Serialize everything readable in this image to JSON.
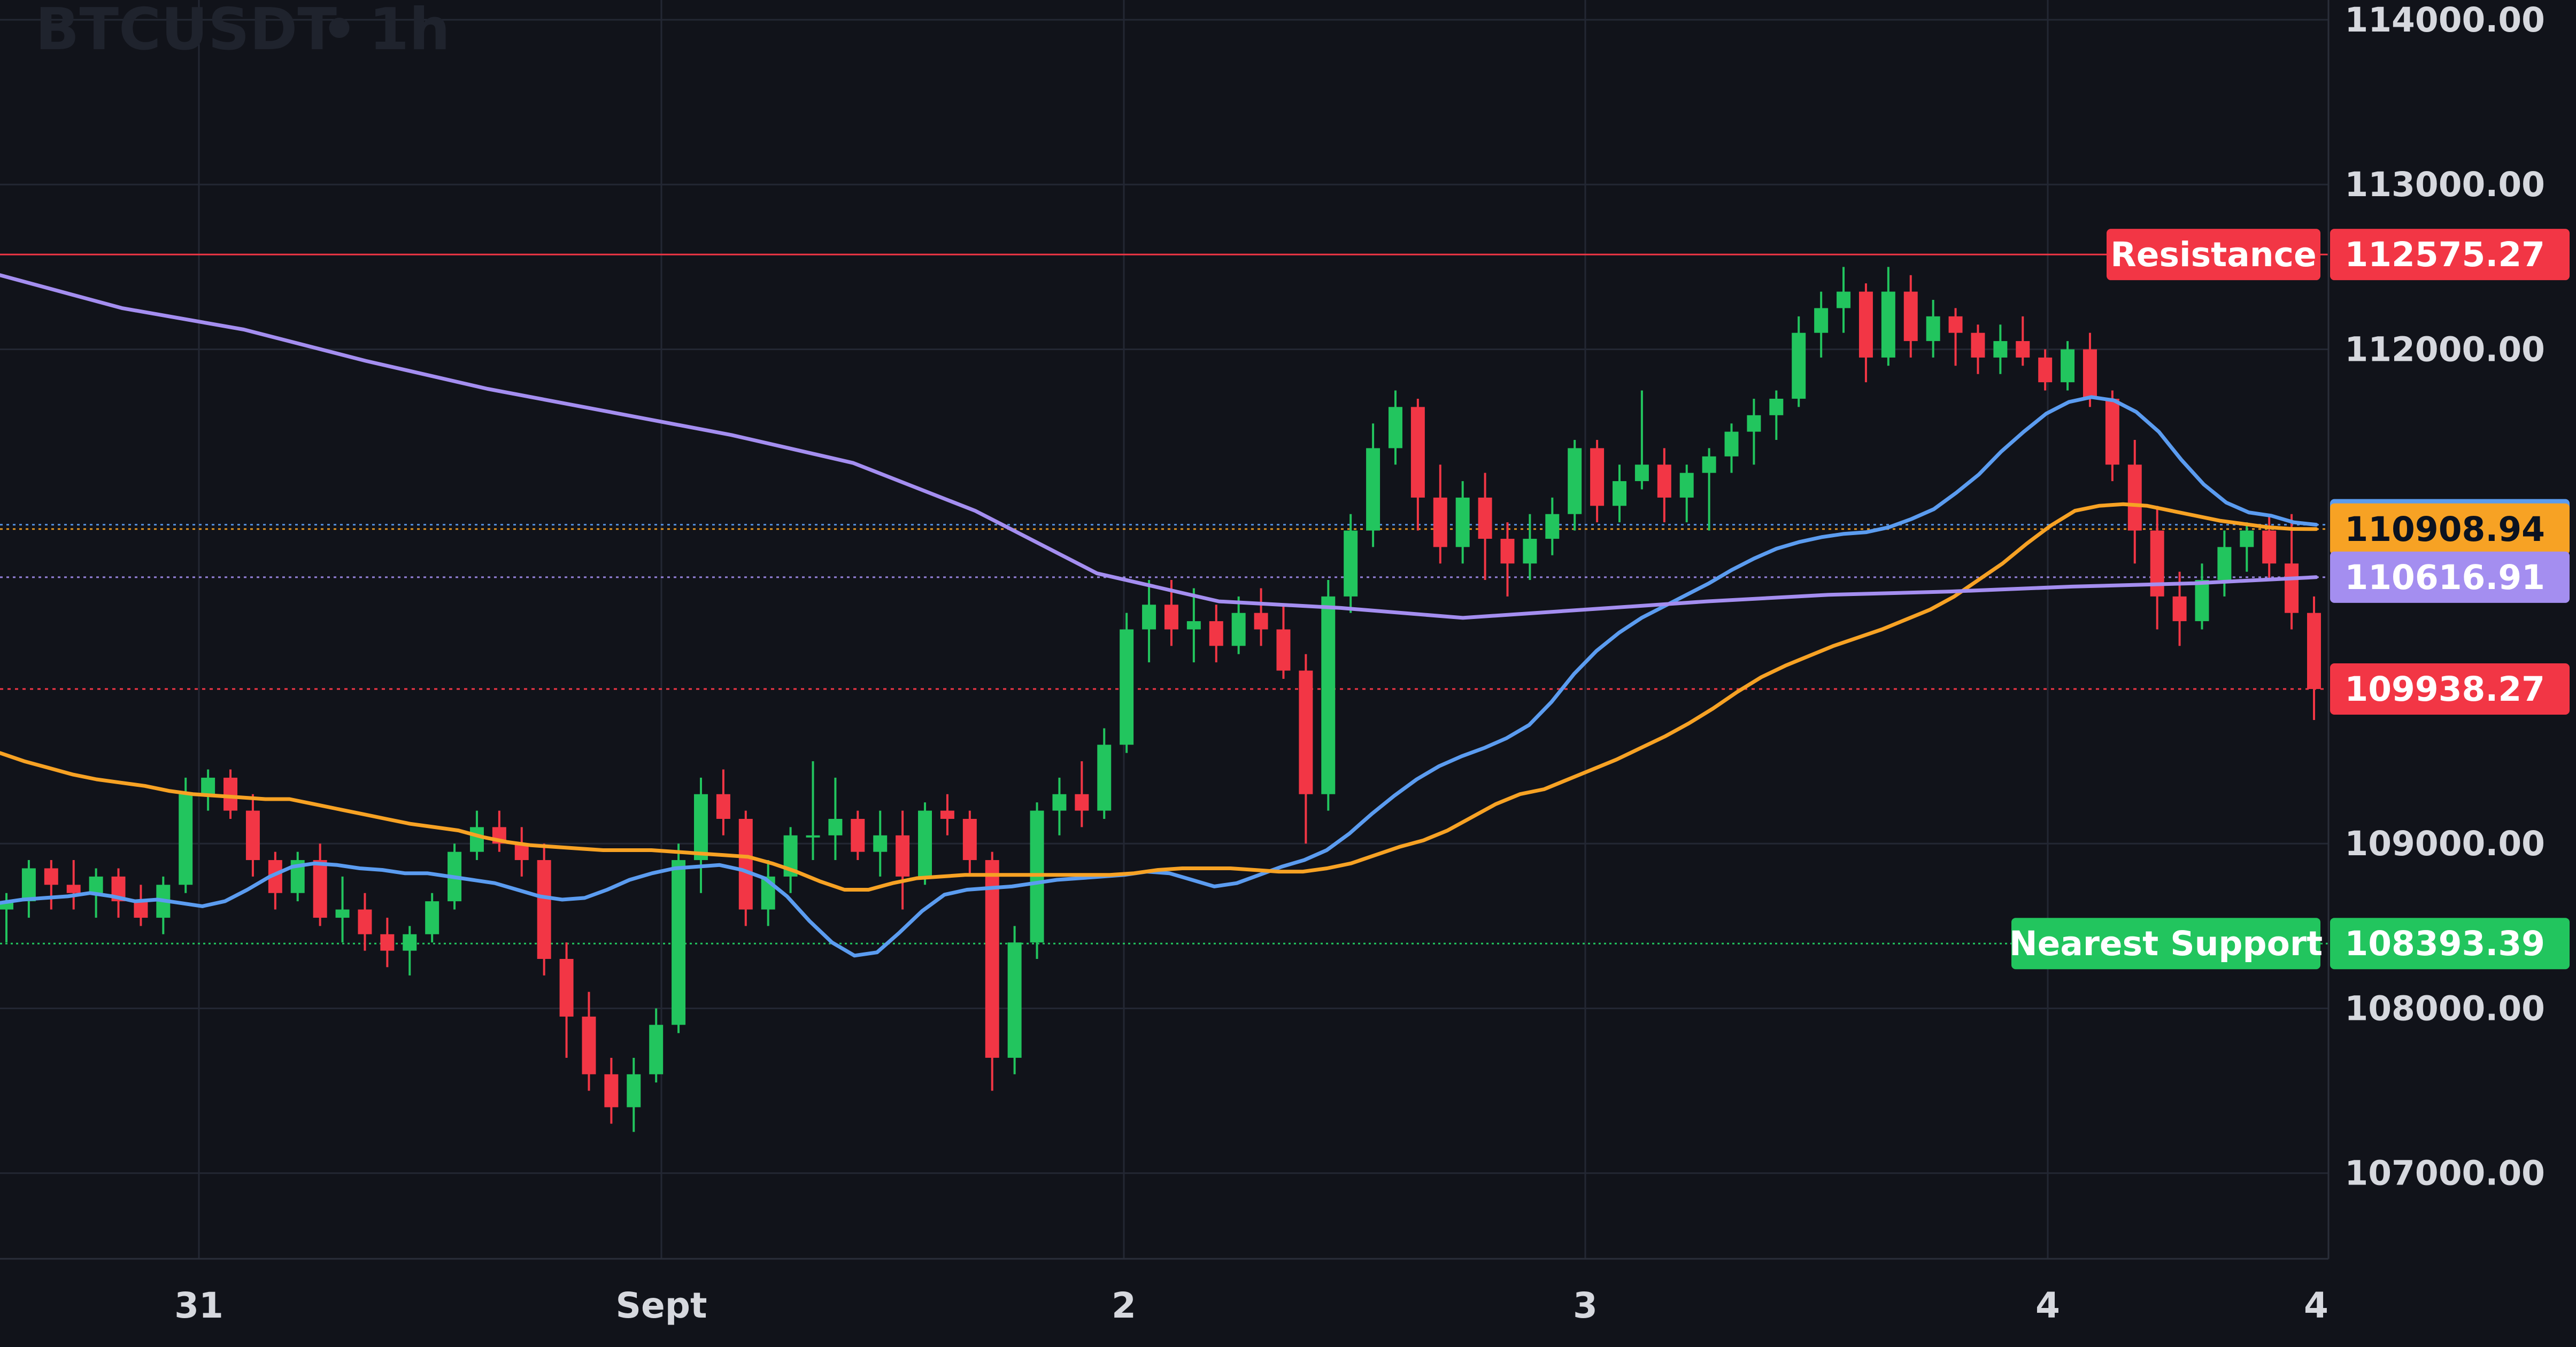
{
  "chart_data": {
    "type": "line",
    "title": "BTCUSDT",
    "interval": "1h",
    "x_tick_labels": [
      "31",
      "Sept",
      "2",
      "3",
      "4",
      "4"
    ],
    "y_tick_labels": [
      "114000.00",
      "113000.00",
      "112000.00",
      "109000.00",
      "108000.00",
      "107000.00"
    ],
    "ylim": [
      106480,
      114120
    ],
    "grid": true,
    "series": [
      {
        "key": "ema_fast",
        "color": "#5b9cf0",
        "last_value": "110935.46",
        "values": [
          108640,
          108660,
          108670,
          108680,
          108700,
          108680,
          108650,
          108660,
          108640,
          108620,
          108650,
          108720,
          108800,
          108860,
          108880,
          108870,
          108850,
          108840,
          108820,
          108820,
          108800,
          108780,
          108760,
          108720,
          108680,
          108660,
          108670,
          108720,
          108780,
          108820,
          108850,
          108860,
          108870,
          108840,
          108790,
          108680,
          108530,
          108400,
          108320,
          108340,
          108460,
          108590,
          108690,
          108720,
          108730,
          108740,
          108760,
          108780,
          108790,
          108800,
          108810,
          108830,
          108820,
          108780,
          108740,
          108760,
          108810,
          108860,
          108900,
          108960,
          109060,
          109180,
          109290,
          109390,
          109470,
          109530,
          109580,
          109640,
          109720,
          109860,
          110030,
          110170,
          110280,
          110370,
          110440,
          110510,
          110580,
          110660,
          110730,
          110790,
          110830,
          110860,
          110880,
          110890,
          110920,
          110970,
          111030,
          111130,
          111240,
          111380,
          111500,
          111610,
          111680,
          111710,
          111690,
          111620,
          111500,
          111330,
          111180,
          111070,
          111010,
          110990,
          110950,
          110935.46
        ]
      },
      {
        "key": "ema_mid",
        "color": "#f7a224",
        "last_value": "110908.94",
        "values": [
          109550,
          109500,
          109460,
          109420,
          109390,
          109370,
          109350,
          109320,
          109300,
          109290,
          109280,
          109270,
          109270,
          109240,
          109210,
          109180,
          109150,
          109120,
          109100,
          109080,
          109040,
          109010,
          108990,
          108980,
          108970,
          108960,
          108960,
          108960,
          108950,
          108940,
          108930,
          108920,
          108880,
          108830,
          108770,
          108720,
          108720,
          108760,
          108790,
          108800,
          108810,
          108810,
          108810,
          108810,
          108810,
          108810,
          108810,
          108820,
          108840,
          108850,
          108850,
          108850,
          108840,
          108830,
          108830,
          108850,
          108880,
          108930,
          108980,
          109020,
          109080,
          109160,
          109240,
          109300,
          109330,
          109390,
          109450,
          109510,
          109580,
          109650,
          109730,
          109820,
          109920,
          110010,
          110080,
          110140,
          110200,
          110250,
          110300,
          110360,
          110420,
          110500,
          110600,
          110700,
          110820,
          110930,
          111020,
          111050,
          111060,
          111050,
          111020,
          110990,
          110960,
          110940,
          110920,
          110910,
          110908.94
        ]
      },
      {
        "key": "ema_slow",
        "color": "#a48ef0",
        "last_value": "110616.91",
        "values": [
          112450,
          112250,
          112120,
          111930,
          111760,
          111620,
          111480,
          111310,
          111020,
          110640,
          110470,
          110430,
          110370,
          110420,
          110470,
          110510,
          110530,
          110560,
          110580,
          110616.91
        ]
      }
    ],
    "levels": [
      {
        "key": "resistance",
        "name": "Resistance",
        "value": "112575.27",
        "color": "#f23645"
      },
      {
        "key": "support",
        "name": "Nearest Support",
        "value": "108393.39",
        "color": "#22c55e"
      },
      {
        "key": "last_price",
        "value": "109938.27",
        "color": "#f23645"
      }
    ],
    "candles": {
      "up_color": "#22c55e",
      "down_color": "#f23645",
      "ohlc": [
        [
          108600,
          108700,
          108400,
          108650
        ],
        [
          108650,
          108900,
          108550,
          108850
        ],
        [
          108850,
          108900,
          108600,
          108750
        ],
        [
          108750,
          108900,
          108600,
          108700
        ],
        [
          108700,
          108850,
          108550,
          108800
        ],
        [
          108800,
          108850,
          108550,
          108650
        ],
        [
          108650,
          108750,
          108500,
          108550
        ],
        [
          108550,
          108800,
          108450,
          108750
        ],
        [
          108750,
          109400,
          108700,
          109300
        ],
        [
          109300,
          109450,
          109200,
          109400
        ],
        [
          109400,
          109450,
          109150,
          109200
        ],
        [
          109200,
          109300,
          108800,
          108900
        ],
        [
          108900,
          108950,
          108600,
          108700
        ],
        [
          108700,
          108950,
          108650,
          108900
        ],
        [
          108900,
          109000,
          108500,
          108550
        ],
        [
          108550,
          108800,
          108400,
          108600
        ],
        [
          108600,
          108700,
          108350,
          108450
        ],
        [
          108450,
          108550,
          108250,
          108350
        ],
        [
          108350,
          108500,
          108200,
          108450
        ],
        [
          108450,
          108700,
          108400,
          108650
        ],
        [
          108650,
          109000,
          108600,
          108950
        ],
        [
          108950,
          109200,
          108900,
          109100
        ],
        [
          109100,
          109200,
          108950,
          109000
        ],
        [
          109000,
          109100,
          108800,
          108900
        ],
        [
          108900,
          109000,
          108200,
          108300
        ],
        [
          108300,
          108400,
          107700,
          107950
        ],
        [
          107950,
          108100,
          107500,
          107600
        ],
        [
          107600,
          107700,
          107300,
          107400
        ],
        [
          107400,
          107700,
          107250,
          107600
        ],
        [
          107600,
          108000,
          107550,
          107900
        ],
        [
          107900,
          109000,
          107850,
          108900
        ],
        [
          108900,
          109400,
          108700,
          109300
        ],
        [
          109300,
          109450,
          109050,
          109150
        ],
        [
          109150,
          109200,
          108500,
          108600
        ],
        [
          108600,
          108900,
          108500,
          108800
        ],
        [
          108800,
          109100,
          108700,
          109050
        ],
        [
          109050,
          109500,
          108900,
          109050
        ],
        [
          109050,
          109400,
          108900,
          109150
        ],
        [
          109150,
          109200,
          108900,
          108950
        ],
        [
          108950,
          109200,
          108800,
          109050
        ],
        [
          109050,
          109200,
          108600,
          108800
        ],
        [
          108800,
          109250,
          108750,
          109200
        ],
        [
          109200,
          109300,
          109050,
          109150
        ],
        [
          109150,
          109200,
          108800,
          108900
        ],
        [
          108900,
          108950,
          107500,
          107700
        ],
        [
          107700,
          108500,
          107600,
          108400
        ],
        [
          108400,
          109250,
          108300,
          109200
        ],
        [
          109200,
          109400,
          109050,
          109300
        ],
        [
          109300,
          109500,
          109100,
          109200
        ],
        [
          109200,
          109700,
          109150,
          109600
        ],
        [
          109600,
          110400,
          109550,
          110300
        ],
        [
          110300,
          110600,
          110100,
          110450
        ],
        [
          110450,
          110600,
          110200,
          110300
        ],
        [
          110300,
          110550,
          110100,
          110350
        ],
        [
          110350,
          110450,
          110100,
          110200
        ],
        [
          110200,
          110500,
          110150,
          110400
        ],
        [
          110400,
          110550,
          110200,
          110300
        ],
        [
          110300,
          110450,
          110000,
          110050
        ],
        [
          110050,
          110150,
          109000,
          109300
        ],
        [
          109300,
          110600,
          109200,
          110500
        ],
        [
          110500,
          111000,
          110400,
          110900
        ],
        [
          110900,
          111550,
          110800,
          111400
        ],
        [
          111400,
          111750,
          111300,
          111650
        ],
        [
          111650,
          111700,
          110900,
          111100
        ],
        [
          111100,
          111300,
          110700,
          110800
        ],
        [
          110800,
          111200,
          110700,
          111100
        ],
        [
          111100,
          111250,
          110600,
          110850
        ],
        [
          110850,
          110950,
          110500,
          110700
        ],
        [
          110700,
          111000,
          110600,
          110850
        ],
        [
          110850,
          111100,
          110750,
          111000
        ],
        [
          111000,
          111450,
          110900,
          111400
        ],
        [
          111400,
          111450,
          110950,
          111050
        ],
        [
          111050,
          111300,
          110950,
          111200
        ],
        [
          111200,
          111750,
          111150,
          111300
        ],
        [
          111300,
          111400,
          110950,
          111100
        ],
        [
          111100,
          111300,
          110950,
          111250
        ],
        [
          111250,
          111400,
          110900,
          111350
        ],
        [
          111350,
          111550,
          111250,
          111500
        ],
        [
          111500,
          111700,
          111300,
          111600
        ],
        [
          111600,
          111750,
          111450,
          111700
        ],
        [
          111700,
          112200,
          111650,
          112100
        ],
        [
          112100,
          112350,
          111950,
          112250
        ],
        [
          112250,
          112500,
          112100,
          112350
        ],
        [
          112350,
          112400,
          111800,
          111950
        ],
        [
          111950,
          112500,
          111900,
          112350
        ],
        [
          112350,
          112450,
          111950,
          112050
        ],
        [
          112050,
          112300,
          111950,
          112200
        ],
        [
          112200,
          112250,
          111900,
          112100
        ],
        [
          112100,
          112150,
          111850,
          111950
        ],
        [
          111950,
          112150,
          111850,
          112050
        ],
        [
          112050,
          112200,
          111900,
          111950
        ],
        [
          111950,
          112000,
          111750,
          111800
        ],
        [
          111800,
          112050,
          111750,
          112000
        ],
        [
          112000,
          112100,
          111650,
          111700
        ],
        [
          111700,
          111750,
          111200,
          111300
        ],
        [
          111300,
          111450,
          110700,
          110900
        ],
        [
          110900,
          111050,
          110300,
          110500
        ],
        [
          110500,
          110650,
          110200,
          110350
        ],
        [
          110350,
          110700,
          110300,
          110600
        ],
        [
          110600,
          110900,
          110500,
          110800
        ],
        [
          110800,
          110950,
          110650,
          110900
        ],
        [
          110900,
          111000,
          110600,
          110700
        ],
        [
          110700,
          111000,
          110300,
          110400
        ],
        [
          110400,
          110500,
          109750,
          109938.27
        ]
      ]
    }
  }
}
